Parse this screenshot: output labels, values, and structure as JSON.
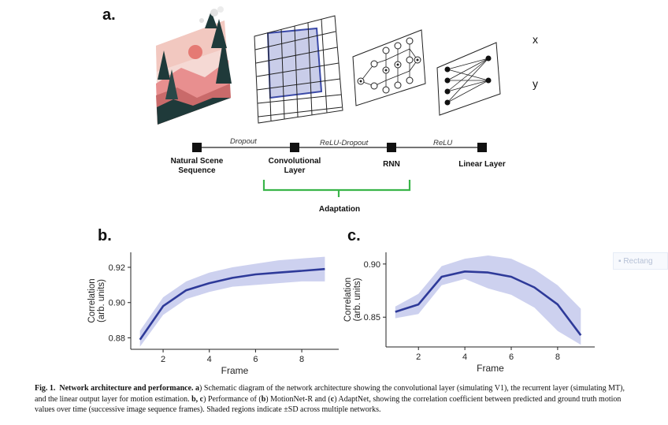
{
  "figure": {
    "panel_a": {
      "label": "a.",
      "io": {
        "x": "x",
        "y": "y"
      },
      "nodes": [
        {
          "lines": [
            "Natural Scene",
            "Sequence"
          ]
        },
        {
          "lines": [
            "Convolutional",
            "Layer"
          ]
        },
        {
          "lines": [
            "RNN"
          ]
        },
        {
          "lines": [
            "Linear Layer"
          ]
        }
      ],
      "edges": [
        "Dropout",
        "ReLU-Dropout",
        "ReLU"
      ],
      "adaptation_label": "Adaptation",
      "colors": {
        "grid_highlight": "#3b4aa8",
        "adaptation_bracket": "#3ab54a",
        "scene_pink": "#e88f8f",
        "scene_dark": "#1f3a3a"
      }
    },
    "caption": {
      "fig_label": "Fig. 1.",
      "title": "Network architecture and performance.",
      "parts": [
        {
          "bold": "a",
          "text": ") Schematic diagram of the network architecture showing the convolutional layer (simulating V1), the recurrent layer (simulating MT), and the linear output layer for motion estimation. "
        },
        {
          "bold": "b, c",
          "text": ") Performance of ("
        },
        {
          "bold": "b",
          "text": ") MotionNet-R and ("
        },
        {
          "bold": "c",
          "text": ") AdaptNet, showing the correlation coefficient between predicted and ground truth motion values over time (successive image sequence frames). Shaded regions indicate ±SD across multiple networks."
        }
      ]
    },
    "overlay": {
      "ghost_text": "Rectang"
    }
  },
  "chart_data": [
    {
      "panel": "b.",
      "type": "line",
      "x": [
        1,
        2,
        3,
        4,
        5,
        6,
        7,
        8,
        9
      ],
      "series": [
        {
          "values": [
            0.879,
            0.898,
            0.907,
            0.911,
            0.914,
            0.916,
            0.917,
            0.918,
            0.919
          ],
          "upper": [
            0.884,
            0.903,
            0.912,
            0.917,
            0.92,
            0.922,
            0.924,
            0.925,
            0.926
          ],
          "lower": [
            0.875,
            0.893,
            0.902,
            0.906,
            0.909,
            0.91,
            0.911,
            0.912,
            0.912
          ]
        }
      ],
      "xlabel": "Frame",
      "ylabel_lines": [
        "Correlation",
        "(arb. units)"
      ],
      "xticks": [
        2,
        4,
        6,
        8
      ],
      "yticks": [
        0.88,
        0.9,
        0.92
      ],
      "ytick_labels": [
        "0.88",
        "0.90",
        "0.92"
      ],
      "xlim": [
        0.6,
        9.6
      ],
      "ylim": [
        0.8735,
        0.9285
      ],
      "colors": {
        "line": "#2e3a99",
        "band": "#c4c9ec"
      }
    },
    {
      "panel": "c.",
      "type": "line",
      "x": [
        1,
        2,
        3,
        4,
        5,
        6,
        7,
        8,
        9
      ],
      "series": [
        {
          "values": [
            0.855,
            0.862,
            0.888,
            0.893,
            0.892,
            0.888,
            0.878,
            0.862,
            0.833
          ],
          "upper": [
            0.86,
            0.872,
            0.898,
            0.905,
            0.908,
            0.905,
            0.895,
            0.88,
            0.858
          ],
          "lower": [
            0.849,
            0.853,
            0.88,
            0.886,
            0.877,
            0.871,
            0.859,
            0.837,
            0.824
          ]
        }
      ],
      "xlabel": "Frame",
      "ylabel_lines": [
        "Correlation",
        "(arb. units)"
      ],
      "xticks": [
        2,
        4,
        6,
        8
      ],
      "yticks": [
        0.85,
        0.9
      ],
      "ytick_labels": [
        "0.85",
        "0.90"
      ],
      "xlim": [
        0.6,
        9.6
      ],
      "ylim": [
        0.822,
        0.911
      ],
      "colors": {
        "line": "#2e3a99",
        "band": "#c4c9ec"
      }
    }
  ]
}
